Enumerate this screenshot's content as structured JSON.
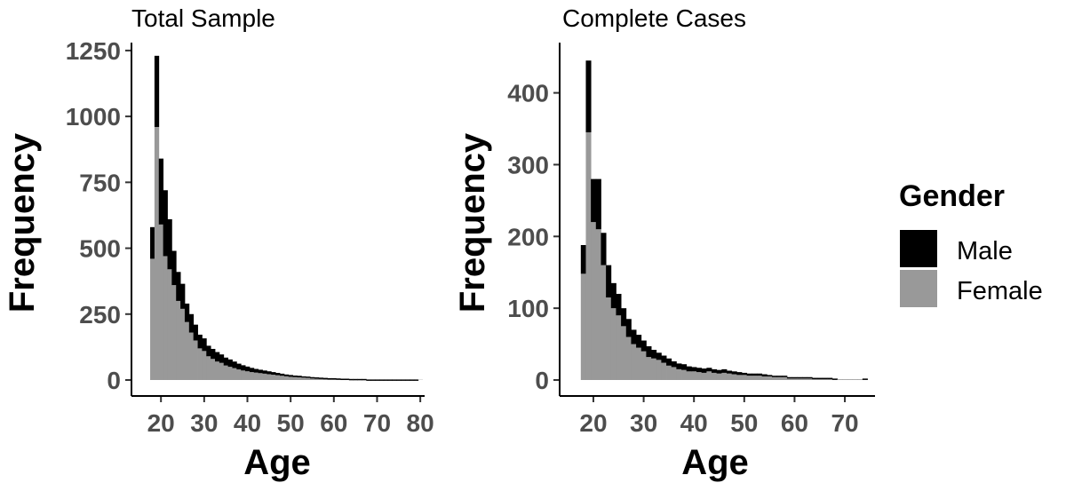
{
  "legend": {
    "title": "Gender",
    "items": [
      {
        "label": "Male",
        "color": "#000000"
      },
      {
        "label": "Female",
        "color": "#999999"
      }
    ]
  },
  "chart_data": [
    {
      "type": "bar",
      "stacked": true,
      "title": "Total Sample",
      "xlabel": "Age",
      "ylabel": "Frequency",
      "xlim": [
        14,
        81
      ],
      "ylim": [
        0,
        1280
      ],
      "xticks": [
        20,
        30,
        40,
        50,
        60,
        70,
        80
      ],
      "yticks": [
        0,
        250,
        500,
        750,
        1000,
        1250
      ],
      "x": [
        18,
        19,
        20,
        21,
        22,
        23,
        24,
        25,
        26,
        27,
        28,
        29,
        30,
        31,
        32,
        33,
        34,
        35,
        36,
        37,
        38,
        39,
        40,
        41,
        42,
        43,
        44,
        45,
        46,
        47,
        48,
        49,
        50,
        51,
        52,
        53,
        54,
        55,
        56,
        57,
        58,
        59,
        60,
        61,
        62,
        63,
        64,
        65,
        66,
        67,
        68,
        69,
        70,
        71,
        72,
        73,
        74,
        75,
        76,
        77,
        78,
        79,
        80
      ],
      "series": [
        {
          "name": "Male",
          "values": [
            120,
            270,
            250,
            250,
            190,
            130,
            110,
            95,
            70,
            70,
            60,
            52,
            48,
            40,
            38,
            36,
            32,
            30,
            28,
            25,
            22,
            20,
            18,
            16,
            14,
            13,
            12,
            11,
            10,
            9,
            8,
            7,
            7,
            6,
            6,
            5,
            5,
            4,
            4,
            4,
            3,
            3,
            3,
            3,
            2,
            2,
            2,
            2,
            2,
            2,
            1,
            1,
            1,
            1,
            1,
            1,
            1,
            1,
            1,
            1,
            1,
            1,
            0
          ]
        },
        {
          "name": "Female",
          "values": [
            460,
            960,
            590,
            470,
            420,
            360,
            300,
            270,
            220,
            180,
            150,
            120,
            110,
            90,
            80,
            70,
            65,
            55,
            50,
            45,
            40,
            36,
            33,
            30,
            28,
            26,
            24,
            22,
            20,
            18,
            16,
            14,
            12,
            11,
            10,
            9,
            8,
            7,
            6,
            5,
            5,
            4,
            4,
            3,
            3,
            3,
            2,
            2,
            2,
            2,
            1,
            1,
            1,
            1,
            1,
            1,
            1,
            1,
            1,
            1,
            1,
            1,
            1
          ]
        }
      ]
    },
    {
      "type": "bar",
      "stacked": true,
      "title": "Complete Cases",
      "xlabel": "Age",
      "ylabel": "Frequency",
      "xlim": [
        14,
        76
      ],
      "ylim": [
        0,
        470
      ],
      "xticks": [
        20,
        30,
        40,
        50,
        60,
        70
      ],
      "yticks": [
        0,
        100,
        200,
        300,
        400
      ],
      "x": [
        18,
        19,
        20,
        21,
        22,
        23,
        24,
        25,
        26,
        27,
        28,
        29,
        30,
        31,
        32,
        33,
        34,
        35,
        36,
        37,
        38,
        39,
        40,
        41,
        42,
        43,
        44,
        45,
        46,
        47,
        48,
        49,
        50,
        51,
        52,
        53,
        54,
        55,
        56,
        57,
        58,
        59,
        60,
        61,
        62,
        63,
        64,
        65,
        66,
        67,
        68,
        69,
        70,
        71,
        72,
        73,
        74
      ],
      "series": [
        {
          "name": "Male",
          "values": [
            40,
            100,
            60,
            70,
            45,
            45,
            35,
            30,
            25,
            25,
            20,
            18,
            15,
            15,
            12,
            10,
            10,
            10,
            8,
            8,
            8,
            7,
            6,
            6,
            6,
            5,
            5,
            5,
            5,
            4,
            4,
            4,
            3,
            3,
            3,
            3,
            3,
            2,
            2,
            2,
            2,
            1,
            1,
            1,
            1,
            1,
            1,
            1,
            1,
            1,
            1,
            0,
            0,
            0,
            0,
            0,
            1
          ]
        },
        {
          "name": "Female",
          "values": [
            148,
            345,
            220,
            210,
            160,
            115,
            100,
            90,
            75,
            60,
            50,
            45,
            40,
            32,
            30,
            28,
            24,
            20,
            18,
            15,
            14,
            12,
            12,
            11,
            10,
            12,
            10,
            9,
            10,
            9,
            8,
            7,
            7,
            6,
            6,
            6,
            5,
            5,
            4,
            4,
            4,
            3,
            3,
            3,
            3,
            3,
            2,
            2,
            2,
            2,
            1,
            1,
            1,
            1,
            1,
            1,
            1
          ]
        }
      ]
    }
  ]
}
